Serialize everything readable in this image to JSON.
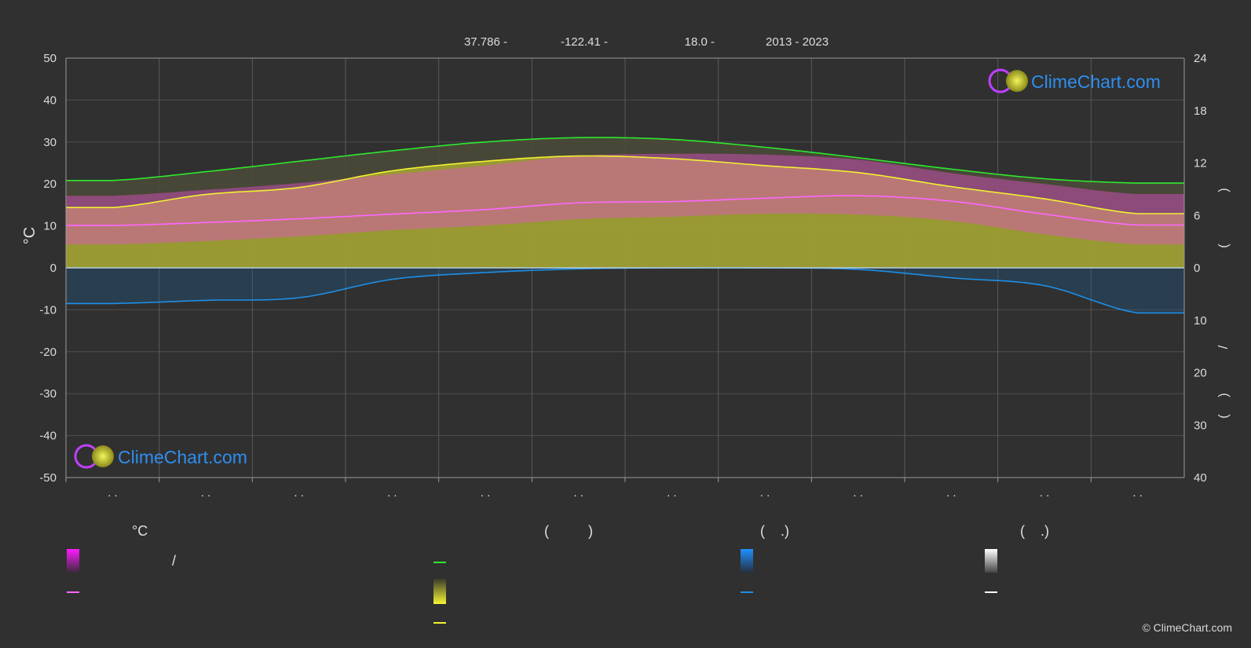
{
  "header": {
    "latitude": "37.786 -",
    "longitude": "-122.41 -",
    "elevation": "18.0 -",
    "period": "2013 - 2023"
  },
  "logo": {
    "text": "ClimeChart.com"
  },
  "copyright": "© ClimeChart.com",
  "legend": {
    "temp_heading": "°C",
    "sun_heading": "(          )",
    "rain_heading": "(    .)",
    "snow_heading": "(    .)",
    "slash": "/"
  },
  "colors": {
    "background": "#303030",
    "daylight": "#2ee82e",
    "sunshine": "#f2f231",
    "temp_mean": "#ff66ff",
    "temp_band": "#e050c8",
    "rain": "#1e8fe6",
    "sun_fill": "#a8a832",
    "logo_text": "#2e8ff0"
  },
  "chart_data": {
    "type": "line",
    "x": [
      0.5,
      1.5,
      2.5,
      3.5,
      4.5,
      5.5,
      6.5,
      7.5,
      8.5,
      9.5,
      10.5,
      11.5
    ],
    "month_labels": [
      ". .",
      ". .",
      ". .",
      ". .",
      ". .",
      ". .",
      ". .",
      ". .",
      ". .",
      ". .",
      ". .",
      ". ."
    ],
    "ylabel_left": "°C",
    "ylim_left": [
      -50,
      50
    ],
    "yticks_left": [
      50,
      40,
      30,
      20,
      10,
      0,
      -10,
      -20,
      -30,
      -40,
      -50
    ],
    "right_upper_axis": {
      "range": [
        0,
        24
      ],
      "ticks": [
        24,
        18,
        12,
        6,
        0
      ]
    },
    "right_lower_axis": {
      "range": [
        0,
        40
      ],
      "ticks": [
        10,
        20,
        30,
        40
      ]
    },
    "right_axis_glyphs": [
      ")",
      "(",
      "/",
      ")",
      "("
    ],
    "grid": true,
    "series": [
      {
        "key": "daylight_hours",
        "axis": "right_upper",
        "values": [
          10.0,
          11.0,
          12.2,
          13.4,
          14.4,
          14.9,
          14.7,
          13.8,
          12.6,
          11.3,
          10.2,
          9.7
        ]
      },
      {
        "key": "sunshine_hours",
        "axis": "right_upper",
        "values": [
          6.9,
          8.4,
          9.2,
          11.1,
          12.2,
          12.8,
          12.5,
          11.7,
          10.9,
          9.3,
          7.9,
          6.2
        ]
      },
      {
        "key": "temp_max_mean",
        "axis": "left",
        "values": [
          17.2,
          18.6,
          20.2,
          22.3,
          24.4,
          26.7,
          27.2,
          27.0,
          25.8,
          22.6,
          20.0,
          17.6
        ]
      },
      {
        "key": "temp_mean",
        "axis": "left",
        "values": [
          10.1,
          10.8,
          11.7,
          12.8,
          13.9,
          15.5,
          15.8,
          16.6,
          17.2,
          15.9,
          12.8,
          10.2
        ]
      },
      {
        "key": "temp_min_mean",
        "axis": "left",
        "values": [
          5.6,
          6.4,
          7.5,
          9.0,
          10.1,
          11.6,
          12.2,
          12.9,
          12.7,
          11.2,
          8.0,
          5.6
        ]
      },
      {
        "key": "precipitation_mm",
        "axis": "right_lower",
        "values": [
          6.8,
          6.2,
          5.7,
          2.2,
          0.9,
          0.2,
          0.0,
          0.0,
          0.3,
          1.9,
          3.4,
          8.6
        ]
      }
    ]
  }
}
